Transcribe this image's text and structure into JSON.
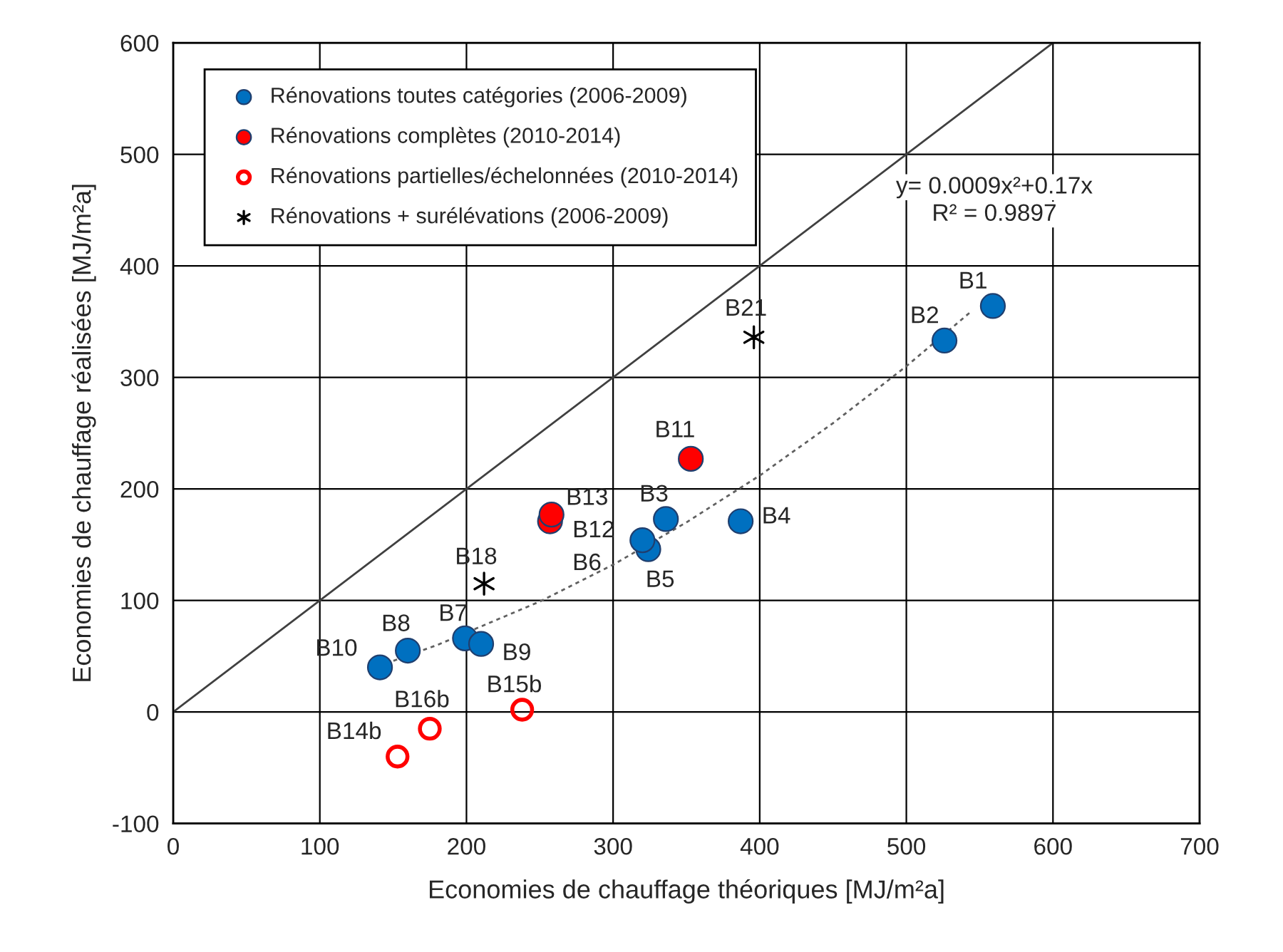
{
  "chart_data": {
    "type": "scatter",
    "xlabel": "Economies de chauffage théoriques [MJ/m²a]",
    "ylabel": "Economies de chauffage réalisées [MJ/m²a]",
    "xlim": [
      0,
      700
    ],
    "ylim": [
      -100,
      600
    ],
    "xticks": [
      0,
      100,
      200,
      300,
      400,
      500,
      600,
      700
    ],
    "yticks": [
      -100,
      0,
      100,
      200,
      300,
      400,
      500,
      600
    ],
    "grid": true,
    "legend": "top left",
    "series": [
      {
        "name": "Rénovations toutes catégories (2006-2009)",
        "color": "#0070c0",
        "marker": "circle",
        "x": [
          559,
          526,
          336,
          387,
          324,
          320,
          199,
          160,
          210,
          141
        ],
        "values": [
          364,
          333,
          173,
          171,
          146,
          154,
          66,
          55,
          61,
          40
        ]
      },
      {
        "name": "Rénovations complètes (2010-2014)",
        "color": "#ff0000",
        "marker": "circle",
        "x": [
          353,
          257,
          258
        ],
        "values": [
          227,
          171,
          177
        ]
      },
      {
        "name": "Rénovations partielles/échelonnées (2010-2014)",
        "color": "#ff0000",
        "x": [
          153,
          238,
          175
        ],
        "values": [
          -40,
          2,
          -15
        ]
      },
      {
        "name": "Rénovations + surélévations (2006-2009)",
        "color": "#000000",
        "marker": "cross",
        "x": [
          212,
          396
        ],
        "values": [
          115,
          336
        ]
      },
      {
        "type": "line",
        "color": "#404040",
        "line_style": "solid",
        "marker": "none",
        "x": [
          0,
          600
        ],
        "values": [
          0,
          600
        ]
      },
      {
        "type": "line",
        "color": "#606060",
        "line_style": "dotted",
        "marker": "none",
        "x": [
          140,
          180,
          250,
          300,
          350,
          400,
          450,
          500,
          545
        ],
        "values": [
          41,
          60,
          99,
          132,
          170,
          212,
          259,
          310,
          360
        ]
      }
    ],
    "annotations": [
      {
        "text": "B1",
        "x": 559,
        "y": 364
      },
      {
        "text": "B2",
        "x": 526,
        "y": 333
      },
      {
        "text": "B3",
        "x": 336,
        "y": 173
      },
      {
        "text": "B4",
        "x": 387,
        "y": 171
      },
      {
        "text": "B5",
        "x": 324,
        "y": 146
      },
      {
        "text": "B6",
        "x": 320,
        "y": 154
      },
      {
        "text": "B7",
        "x": 199,
        "y": 66
      },
      {
        "text": "B8",
        "x": 160,
        "y": 55
      },
      {
        "text": "B9",
        "x": 210,
        "y": 61
      },
      {
        "text": "B10",
        "x": 141,
        "y": 40
      },
      {
        "text": "B11",
        "x": 353,
        "y": 227
      },
      {
        "text": "B12",
        "x": 257,
        "y": 171
      },
      {
        "text": "B13",
        "x": 258,
        "y": 177
      },
      {
        "text": "B14b",
        "x": 153,
        "y": -40
      },
      {
        "text": "B15b",
        "x": 238,
        "y": 2
      },
      {
        "text": "B16b",
        "x": 175,
        "y": -15
      },
      {
        "text": "B18",
        "x": 212,
        "y": 115
      },
      {
        "text": "B21",
        "x": 396,
        "y": 336
      },
      "y= 0.0009x²+0.17x",
      "R² = 0.9897"
    ]
  }
}
